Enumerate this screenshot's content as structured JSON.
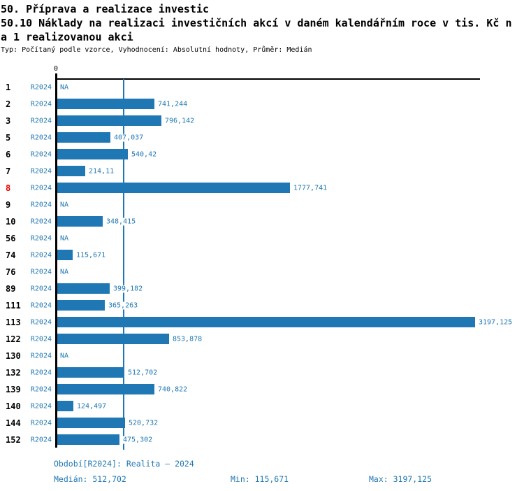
{
  "header": {
    "title_line1": "50. Příprava a realizace investic",
    "title_line2": "50.10 Náklady na realizaci investičních akcí v daném kalendářním roce v tis. Kč n",
    "title_line3": "a 1 realizovanou akci",
    "subtitle": "Typ: Počítaný podle vzorce, Vyhodnocení: Absolutní hodnoty, Průměr: Medián"
  },
  "chart_data": {
    "type": "bar",
    "orientation": "horizontal",
    "title": "50.10 Náklady na realizaci investičních akcí v daném kalendářním roce v tis. Kč na 1 realizovanou akci",
    "series_label": "R2024",
    "zero_tick_label": "0",
    "na_label": "NA",
    "categories": [
      "1",
      "2",
      "3",
      "5",
      "6",
      "7",
      "8",
      "9",
      "10",
      "56",
      "74",
      "76",
      "89",
      "111",
      "113",
      "122",
      "130",
      "132",
      "139",
      "140",
      "144",
      "152"
    ],
    "values": [
      null,
      741.244,
      796.142,
      407.037,
      540.42,
      214.11,
      1777.741,
      null,
      348.415,
      null,
      115.671,
      null,
      399.182,
      365.263,
      3197.125,
      853.878,
      null,
      512.702,
      740.822,
      124.497,
      520.732,
      475.302
    ],
    "value_labels": [
      "NA",
      "741,244",
      "796,142",
      "407,037",
      "540,42",
      "214,11",
      "1777,741",
      "NA",
      "348,415",
      "NA",
      "115,671",
      "NA",
      "399,182",
      "365,263",
      "3197,125",
      "853,878",
      "NA",
      "512,702",
      "740,822",
      "124,497",
      "520,732",
      "475,302"
    ],
    "highlighted_category": "8",
    "median": 512.702,
    "min": 115.671,
    "max": 3197.125,
    "xlim": [
      0,
      3240
    ],
    "median_line": true,
    "grid": false,
    "legend": false,
    "colors": {
      "bar": "#1f77b4",
      "accent_text": "#1f77b4",
      "highlight": "#ee0000",
      "axis": "#000000"
    }
  },
  "footer": {
    "period_label": "Období[R2024]: Realita – 2024",
    "median_label": "Medián: 512,702",
    "min_label": "Min: 115,671",
    "max_label": "Max: 3197,125"
  }
}
